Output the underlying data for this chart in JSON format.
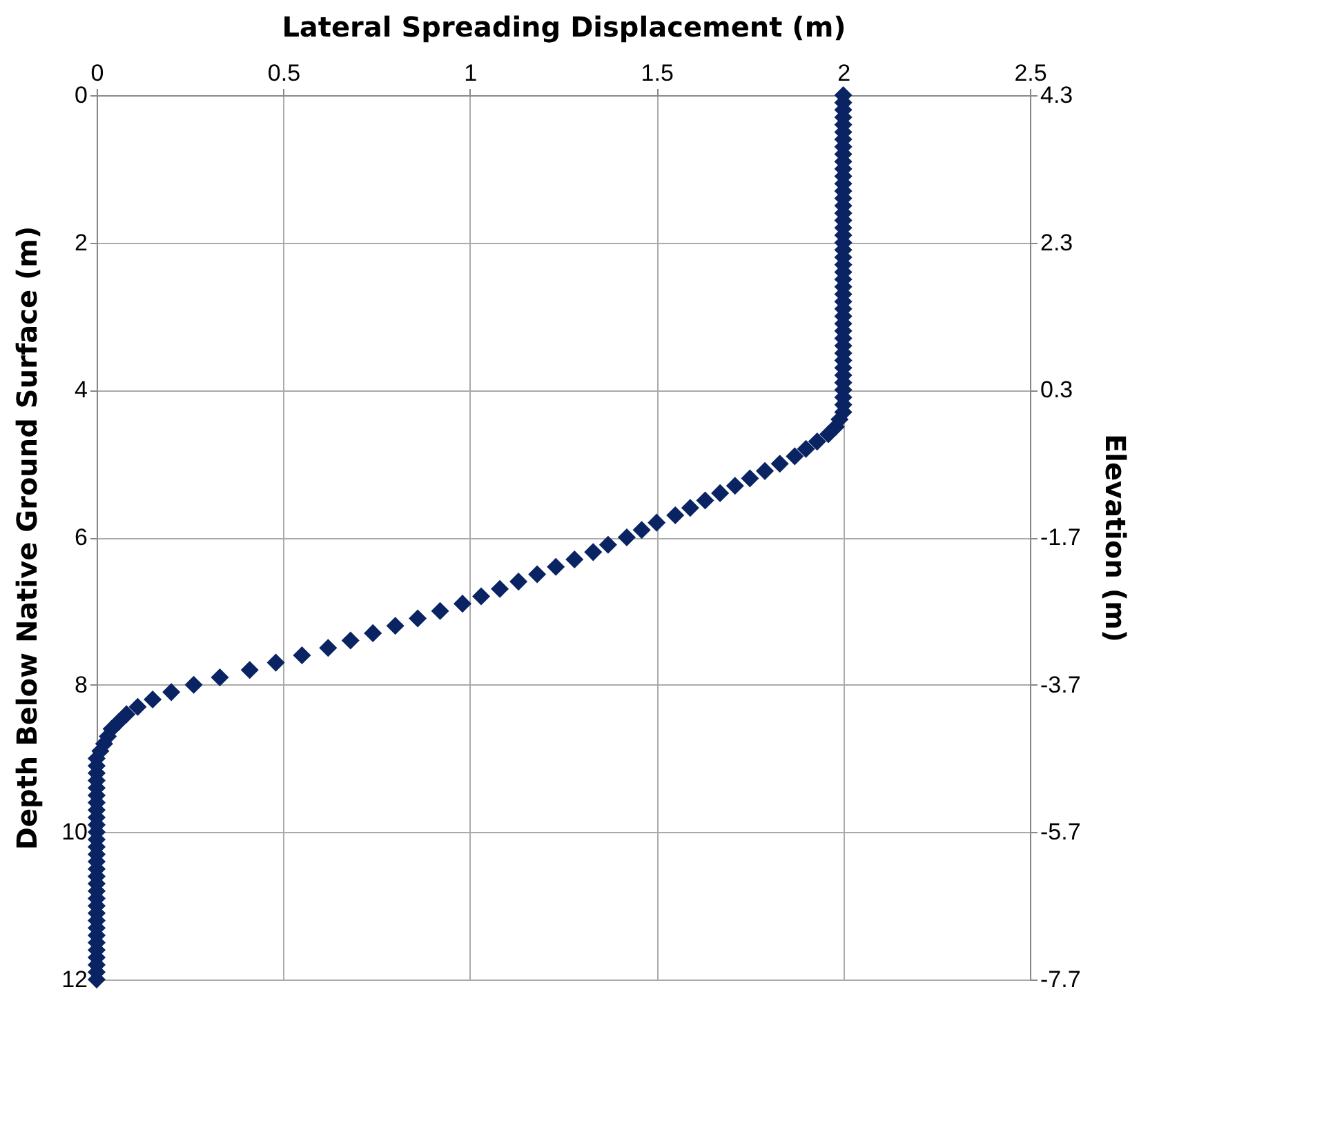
{
  "chart_data": {
    "type": "scatter",
    "xlabel": "Lateral Spreading Displacement (m)",
    "ylabel": "Depth Below Native Ground Surface (m)",
    "y2label": "Elevation (m)",
    "x": [
      2,
      2,
      2,
      2,
      2,
      2,
      2,
      2,
      2,
      2,
      2,
      2,
      2,
      2,
      2,
      2,
      2,
      2,
      2,
      2,
      2,
      2,
      2,
      2,
      2,
      2,
      2,
      2,
      2,
      2,
      2,
      2,
      2,
      2,
      2,
      2,
      2,
      2,
      2,
      2,
      2,
      2,
      2,
      2,
      1.99,
      1.98,
      1.96,
      1.93,
      1.9,
      1.87,
      1.83,
      1.79,
      1.75,
      1.71,
      1.67,
      1.63,
      1.59,
      1.55,
      1.5,
      1.46,
      1.42,
      1.37,
      1.33,
      1.28,
      1.23,
      1.18,
      1.13,
      1.08,
      1.03,
      0.98,
      0.92,
      0.86,
      0.8,
      0.74,
      0.68,
      0.62,
      0.55,
      0.48,
      0.41,
      0.33,
      0.26,
      0.2,
      0.15,
      0.11,
      0.08,
      0.06,
      0.04,
      0.03,
      0.02,
      0.01,
      0,
      0,
      0,
      0,
      0,
      0,
      0,
      0,
      0,
      0,
      0,
      0,
      0,
      0,
      0,
      0,
      0,
      0,
      0,
      0,
      0,
      0,
      0,
      0,
      0,
      0,
      0,
      0,
      0,
      0,
      0
    ],
    "values": [
      0,
      0.1,
      0.2,
      0.3,
      0.4,
      0.5,
      0.6,
      0.7,
      0.8,
      0.9,
      1,
      1.1,
      1.2,
      1.3,
      1.4,
      1.5,
      1.6,
      1.7,
      1.8,
      1.9,
      2,
      2.1,
      2.2,
      2.3,
      2.4,
      2.5,
      2.6,
      2.7,
      2.8,
      2.9,
      3,
      3.1,
      3.2,
      3.3,
      3.4,
      3.5,
      3.6,
      3.7,
      3.8,
      3.9,
      4,
      4.1,
      4.2,
      4.3,
      4.4,
      4.5,
      4.6,
      4.7,
      4.8,
      4.9,
      5,
      5.1,
      5.2,
      5.3,
      5.4,
      5.5,
      5.6,
      5.7,
      5.8,
      5.9,
      6,
      6.1,
      6.2,
      6.3,
      6.4,
      6.5,
      6.6,
      6.7,
      6.8,
      6.9,
      7,
      7.1,
      7.2,
      7.3,
      7.4,
      7.5,
      7.6,
      7.7,
      7.8,
      7.9,
      8,
      8.1,
      8.2,
      8.3,
      8.4,
      8.5,
      8.6,
      8.7,
      8.8,
      8.9,
      9,
      9.1,
      9.2,
      9.3,
      9.4,
      9.5,
      9.6,
      9.7,
      9.8,
      9.9,
      10,
      10.1,
      10.2,
      10.3,
      10.4,
      10.5,
      10.6,
      10.7,
      10.8,
      10.9,
      11,
      11.1,
      11.2,
      11.3,
      11.4,
      11.5,
      11.6,
      11.7,
      11.8,
      11.9,
      12
    ],
    "color": "#0a2463",
    "marker": "diamond",
    "xlim": [
      0,
      2.5
    ],
    "xticks": [
      0,
      0.5,
      1,
      1.5,
      2,
      2.5
    ],
    "ylim": [
      12,
      0
    ],
    "yticks": [
      0,
      2,
      4,
      6,
      8,
      10,
      12
    ],
    "y2lim": [
      -7.7,
      4.3
    ],
    "y2ticks": [
      4.3,
      2.3,
      0.3,
      -1.7,
      -3.7,
      -5.7,
      -7.7
    ],
    "grid": true
  }
}
